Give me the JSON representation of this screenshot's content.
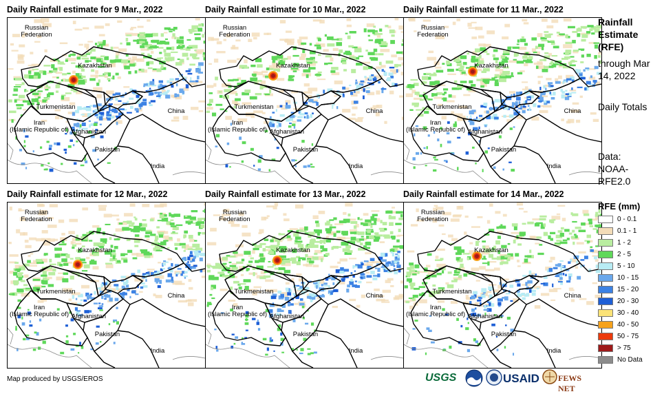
{
  "panels": [
    {
      "title": "Daily Rainfall estimate for 9 Mar., 2022",
      "intensity": 1.1,
      "map_labels": [
        "Russian\nFederation",
        "Kazakhstan",
        "Turkmenistan",
        "Iran\n(Islamic Republic of)",
        "Afghanistan",
        "Pakistan",
        "India",
        "China"
      ]
    },
    {
      "title": "Daily Rainfall estimate for 10 Mar., 2022",
      "intensity": 0.7,
      "map_labels": [
        "Russian\nFederation",
        "Kazakhstan",
        "Turkmenistan",
        "Iran\n(Islamic Republic of)",
        "Afghanistan",
        "Pakistan",
        "India",
        "China"
      ]
    },
    {
      "title": "Daily Rainfall estimate for 11 Mar., 2022",
      "intensity": 1.0,
      "map_labels": [
        "Russian\nFederation",
        "Kazakhstan",
        "Turkmenistan",
        "Iran\n(Islamic Republic of)",
        "Afghanistan",
        "Pakistan",
        "India",
        "China"
      ]
    },
    {
      "title": "Daily Rainfall estimate for 12 Mar., 2022",
      "intensity": 1.0,
      "map_labels": [
        "Russian\nFederation",
        "Kazakhstan",
        "Turkmenistan",
        "Iran\n(Islamic Republic of)",
        "Afghanistan",
        "Pakistan",
        "India",
        "China"
      ]
    },
    {
      "title": "Daily Rainfall estimate for 13 Mar., 2022",
      "intensity": 1.2,
      "map_labels": [
        "Russian\nFederation",
        "Kazakhstan",
        "Turkmenistan",
        "Iran\n(Islamic Republic of)",
        "Afghanistan",
        "Pakistan",
        "India",
        "China"
      ]
    },
    {
      "title": "Daily Rainfall estimate for 14 Mar., 2022",
      "intensity": 0.8,
      "map_labels": [
        "Russian\nFederation",
        "Kazakhstan",
        "Turkmenistan",
        "Iran\n(Islamic Republic of)",
        "Afghanistan",
        "Pakistan",
        "India",
        "China"
      ]
    }
  ],
  "side": {
    "heading": "Rainfall Estimate (RFE)",
    "through": "through Mar 14, 2022",
    "daily": "Daily Totals",
    "source": "Data: NOAA-RFE2.0"
  },
  "legend": {
    "title": "RFE (mm)",
    "items": [
      {
        "label": "0 - 0.1",
        "color": "#ffffff"
      },
      {
        "label": "0.1 - 1",
        "color": "#f3dcb8"
      },
      {
        "label": "1 - 2",
        "color": "#b9eda0"
      },
      {
        "label": "2 - 5",
        "color": "#5fd85a"
      },
      {
        "label": "5 - 10",
        "color": "#b8ecf4"
      },
      {
        "label": "10 - 15",
        "color": "#6aa8ec"
      },
      {
        "label": "15 - 20",
        "color": "#3c82e4"
      },
      {
        "label": "20 - 30",
        "color": "#1e5fd6"
      },
      {
        "label": "30 - 40",
        "color": "#fbe377"
      },
      {
        "label": "40 - 50",
        "color": "#f6a21c"
      },
      {
        "label": "50 - 75",
        "color": "#ec3a0c"
      },
      {
        "label": "> 75",
        "color": "#9e1a1a"
      },
      {
        "label": "No Data",
        "color": "#8c8c8c"
      }
    ]
  },
  "footer": "Map produced by USGS/EROS",
  "logos": [
    "USGS",
    "NOAA",
    "USAID",
    "FEWS NET"
  ]
}
